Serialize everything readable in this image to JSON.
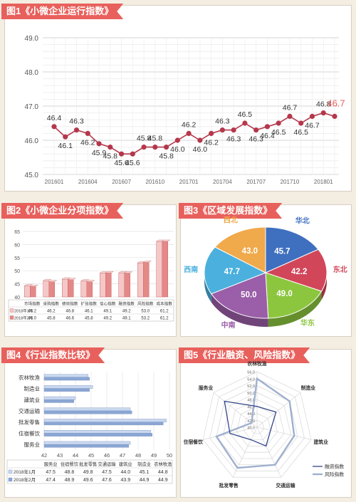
{
  "figures": [
    {
      "title": "图1《小微企业运行指数》"
    },
    {
      "title": "图2《小微企业分项指数》"
    },
    {
      "title": "图3《区域发展指数》"
    },
    {
      "title": "图4《行业指数比较》"
    },
    {
      "title": "图5《行业融资、风险指数》"
    }
  ],
  "colors": {
    "accent": "#e8605c",
    "line": "#b5374b",
    "bar_light": "#f5c8c8",
    "bar_dark": "#e48888",
    "bar4_light": "#c9d8ef",
    "bar4_dark": "#8aa6d4"
  },
  "chart_data": [
    {
      "type": "line",
      "title": "图1《小微企业运行指数》",
      "x": [
        "201601",
        "201602",
        "201603",
        "201604",
        "201605",
        "201606",
        "201607",
        "201608",
        "201609",
        "201610",
        "201611",
        "201612",
        "201701",
        "201702",
        "201703",
        "201704",
        "201705",
        "201706",
        "201707",
        "201708",
        "201709",
        "201710",
        "201711",
        "201712",
        "201801",
        "201802"
      ],
      "x_ticks": [
        "201601",
        "201604",
        "201607",
        "201610",
        "201701",
        "201704",
        "201707",
        "201710",
        "201801"
      ],
      "values": [
        46.4,
        46.1,
        46.3,
        46.2,
        45.9,
        45.8,
        45.6,
        45.6,
        45.8,
        45.8,
        45.8,
        46.0,
        46.2,
        46.0,
        46.2,
        46.3,
        46.3,
        46.5,
        46.3,
        46.4,
        46.5,
        46.7,
        46.5,
        46.7,
        46.8,
        46.7
      ],
      "y_ticks": [
        "45.0",
        "46.0",
        "47.0",
        "48.0",
        "49.0"
      ],
      "ylim": [
        45.0,
        49.0
      ],
      "grid": true
    },
    {
      "type": "bar",
      "title": "图2《小微企业分项指数》",
      "categories": [
        "市场指数",
        "采购指数",
        "绩效指数",
        "扩张指数",
        "信心指数",
        "融资指数",
        "风险指数",
        "成本指数"
      ],
      "series": [
        {
          "name": "2018年1月",
          "values": [
            44.2,
            46.2,
            46.8,
            46.1,
            49.1,
            49.2,
            53.0,
            61.2
          ]
        },
        {
          "name": "2018年2月",
          "values": [
            44.0,
            45.8,
            46.6,
            45.8,
            49.2,
            49.1,
            53.2,
            61.2
          ]
        }
      ],
      "y_ticks": [
        "40",
        "45",
        "50",
        "55",
        "60",
        "65"
      ],
      "ylim": [
        40,
        65
      ],
      "table": {
        "rows": [
          {
            "label": "2018年1月",
            "values": [
              "44.2",
              "46.2",
              "46.8",
              "46.1",
              "49.1",
              "49.2",
              "53.0",
              "61.2"
            ]
          },
          {
            "label": "2018年2月",
            "values": [
              "44.0",
              "45.8",
              "46.6",
              "45.8",
              "49.2",
              "49.1",
              "53.2",
              "61.2"
            ]
          }
        ]
      }
    },
    {
      "type": "pie",
      "title": "图3《区域发展指数》",
      "categories": [
        "华北",
        "东北",
        "华东",
        "中南",
        "西南",
        "西北"
      ],
      "values": [
        45.7,
        42.2,
        49.0,
        50.0,
        47.7,
        43.0
      ],
      "value_labels": [
        "45.7",
        "42.2",
        "49.0",
        "50.0",
        "47.7",
        "43.0"
      ],
      "colors": [
        "#3f6fbf",
        "#d2465a",
        "#8cc63f",
        "#9b5ea8",
        "#4bb0dd",
        "#f0a94b"
      ]
    },
    {
      "type": "bar",
      "orientation": "horizontal",
      "title": "图4《行业指数比较》",
      "categories": [
        "服务业",
        "住宿餐饮",
        "批发零售",
        "交通运输",
        "建筑业",
        "制造业",
        "农林牧渔"
      ],
      "series": [
        {
          "name": "2018年1月",
          "values": [
            47.5,
            48.8,
            49.8,
            47.5,
            44.0,
            45.1,
            44.8
          ]
        },
        {
          "name": "2018年2月",
          "values": [
            47.4,
            48.9,
            49.6,
            47.6,
            43.9,
            44.9,
            44.9
          ]
        }
      ],
      "x_ticks": [
        "42",
        "43",
        "44",
        "45",
        "46",
        "47",
        "48",
        "49",
        "50"
      ],
      "xlim": [
        42,
        50
      ],
      "table": {
        "rows": [
          {
            "label": "2018年1月",
            "values": [
              "47.5",
              "48.8",
              "49.8",
              "47.5",
              "44.0",
              "45.1",
              "44.8"
            ]
          },
          {
            "label": "2018年2月",
            "values": [
              "47.4",
              "48.9",
              "49.6",
              "47.6",
              "43.9",
              "44.9",
              "44.9"
            ]
          }
        ]
      }
    },
    {
      "type": "radar",
      "title": "图5《行业融资、风险指数》",
      "categories": [
        "农林牧渔",
        "制造业",
        "建筑业",
        "交通运输",
        "批发零售",
        "住宿餐饮",
        "服务业"
      ],
      "series": [
        {
          "name": "融资指数",
          "values": [
            46.0,
            47.0,
            44.0,
            46.0,
            44.0,
            48.0,
            52.0
          ]
        },
        {
          "name": "风险指数",
          "values": [
            54.0,
            52.0,
            51.0,
            52.0,
            53.0,
            52.0,
            42.0
          ]
        }
      ],
      "r_ticks": [
        "40.0",
        "42.0",
        "44.0",
        "46.0",
        "48.0",
        "50.0",
        "52.0",
        "54.0",
        "56.0"
      ],
      "rlim": [
        40,
        56
      ]
    }
  ]
}
